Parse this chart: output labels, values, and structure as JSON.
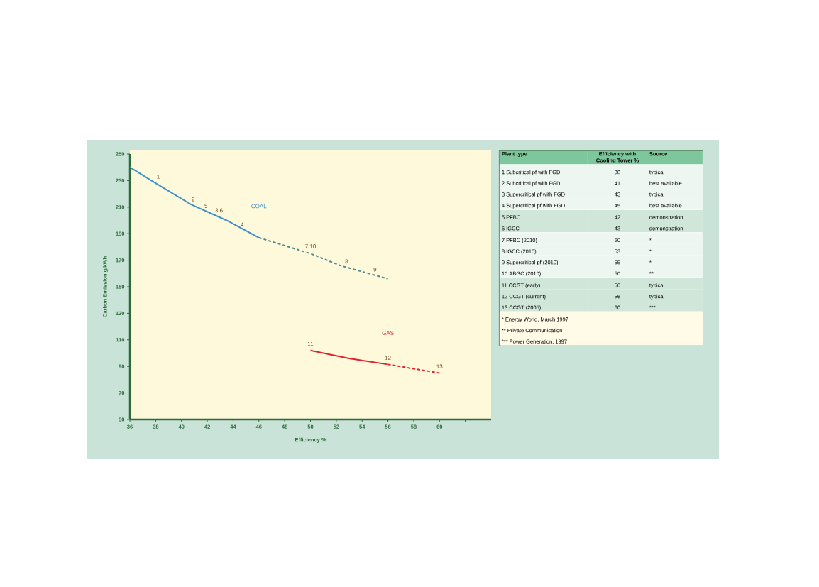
{
  "chart_data": [
    {
      "type": "line",
      "xlabel": "Efficiency %",
      "ylabel": "Carbon Emission g/kWh",
      "xlim": [
        36,
        64
      ],
      "ylim": [
        50,
        250
      ],
      "xticks": [
        36,
        38,
        40,
        42,
        44,
        46,
        48,
        50,
        52,
        54,
        56,
        58,
        60,
        {
          "value": 62,
          "label": null
        }
      ],
      "yticks": [
        50,
        70,
        90,
        110,
        130,
        150,
        170,
        190,
        210,
        230,
        250
      ],
      "series": [
        {
          "name": "COAL",
          "color": "#3d8fca",
          "line_style": "solid",
          "x": [
            36,
            38,
            40.75,
            43.5,
            46
          ],
          "values": [
            240,
            228,
            212,
            200,
            187
          ]
        },
        {
          "color": "#4f8a8f",
          "line_style": "dashed",
          "x": [
            46,
            50,
            52.3,
            56
          ],
          "values": [
            187,
            175,
            166,
            156
          ]
        },
        {
          "name": "GAS",
          "color": "#e2232e",
          "line_style": "solid",
          "x": [
            50,
            53,
            56
          ],
          "values": [
            102,
            96,
            91.5
          ]
        },
        {
          "color": "#e2232e",
          "line_style": "dashed",
          "x": [
            56,
            60
          ],
          "values": [
            91.5,
            85
          ]
        }
      ],
      "annotations": [
        {
          "text": "1",
          "x": 38.2,
          "y": 228
        },
        {
          "text": "2",
          "x": 40.9,
          "y": 211
        },
        {
          "text": "5",
          "x": 41.9,
          "y": 206
        },
        {
          "text": "3,6",
          "x": 42.9,
          "y": 202
        },
        {
          "text": "4",
          "x": 44.7,
          "y": 192
        },
        {
          "text": "7,10",
          "x": 50,
          "y": 175
        },
        {
          "text": "8",
          "x": 52.8,
          "y": 164
        },
        {
          "text": "9",
          "x": 55,
          "y": 158
        },
        {
          "text": "11",
          "x": 50,
          "y": 102
        },
        {
          "text": "12",
          "x": 56,
          "y": 91.5
        },
        {
          "text": "13",
          "x": 60,
          "y": 85
        }
      ]
    },
    {
      "type": "other",
      "annotations": [
        "Plant type",
        "Efficiency with Cooling Tower %",
        "Source",
        "1 Subcritical pf with FGD",
        "38",
        "typical",
        "2 Subcritical pf with FGD",
        "41",
        "best available",
        "3 Supercritical pf with FGD",
        "43",
        "typical",
        "4 Supercritical pf with FGD",
        "45",
        "best available",
        "5 PFBC",
        "42",
        "demonstration",
        "6 IGCC",
        "43",
        "demonstration",
        "7 PFBC (2010)",
        "50",
        "*",
        "8 IGCC (2010)",
        "53",
        "*",
        "9 Supercritical pf (2010)",
        "55",
        "*",
        "10 ABGC (2010)",
        "50",
        "**",
        "11 CCGT (early)",
        "50",
        "typical",
        "12 CCGT (current)",
        "56",
        "typical",
        "13 CCGT (2005)",
        "60",
        "***",
        "* Energy World, March 1997",
        "** Private Communication",
        "*** Power Generation, 1997"
      ]
    }
  ]
}
